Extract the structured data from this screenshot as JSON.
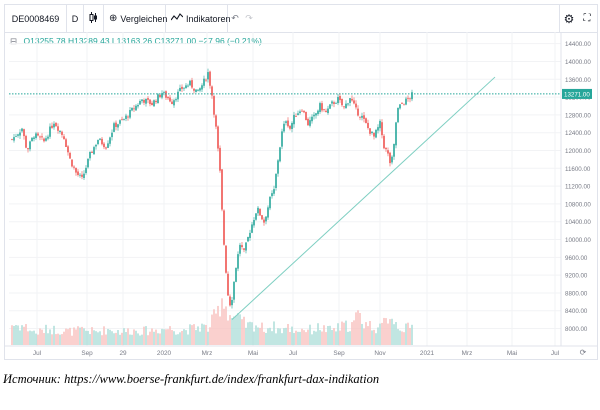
{
  "toolbar": {
    "symbol": "DE0008469",
    "interval": "D",
    "compare_label": "Vergleichen",
    "indicators_label": "Indikatoren",
    "icons": {
      "expand": "expand-icon",
      "bar_style": "candle-style-icon",
      "compare": "plus-circle-icon",
      "indicators": "indicators-icon",
      "undo": "undo-icon",
      "redo": "redo-icon",
      "settings": "gear-icon",
      "fullscreen": "fullscreen-icon"
    }
  },
  "legend": {
    "open": "O13255.78",
    "high": "H13289.43",
    "low": "L13163.26",
    "close": "C13271.00",
    "change": "−27.96 (−0.21%)",
    "icon": "collapse-icon"
  },
  "colors": {
    "up": "#26a69a",
    "down": "#ef5350",
    "volume_up": "#b2dfdb",
    "volume_down": "#f8c4c2",
    "trendline": "#7ecfc2",
    "price_line": "#26a69a"
  },
  "chart_data": {
    "type": "candlestick",
    "y_ticks": [
      "14400.00",
      "14000.00",
      "13600.00",
      "13200.00",
      "12800.00",
      "12400.00",
      "12000.00",
      "11600.00",
      "11200.00",
      "10800.00",
      "10400.00",
      "10000.00",
      "9600.00",
      "9200.00",
      "8800.00",
      "8400.00",
      "8000.00"
    ],
    "x_ticks": [
      "Jul",
      "Sep",
      "29",
      "2020",
      "Mrz",
      "Mai",
      "Jul",
      "Sep",
      "Nov",
      "2021",
      "Mrz",
      "Mai",
      "Jul"
    ],
    "ylim": [
      7900,
      14550
    ],
    "last_price_label": "13271.00",
    "last_price": 13271,
    "price_path": [
      [
        0,
        12250
      ],
      [
        10,
        12500
      ],
      [
        15,
        12000
      ],
      [
        22,
        12350
      ],
      [
        32,
        12200
      ],
      [
        42,
        12650
      ],
      [
        52,
        12300
      ],
      [
        58,
        11800
      ],
      [
        64,
        11500
      ],
      [
        70,
        11350
      ],
      [
        78,
        11900
      ],
      [
        86,
        12250
      ],
      [
        94,
        12100
      ],
      [
        102,
        12550
      ],
      [
        112,
        12700
      ],
      [
        120,
        12900
      ],
      [
        130,
        13150
      ],
      [
        140,
        13050
      ],
      [
        150,
        13300
      ],
      [
        160,
        13100
      ],
      [
        170,
        13400
      ],
      [
        178,
        13500
      ],
      [
        186,
        13300
      ],
      [
        192,
        13550
      ],
      [
        196,
        13750
      ],
      [
        200,
        13250
      ],
      [
        204,
        12500
      ],
      [
        208,
        11500
      ],
      [
        211,
        10200
      ],
      [
        214,
        9300
      ],
      [
        217,
        8500
      ],
      [
        220,
        8700
      ],
      [
        224,
        9400
      ],
      [
        228,
        9900
      ],
      [
        232,
        9700
      ],
      [
        238,
        10200
      ],
      [
        245,
        10700
      ],
      [
        252,
        10400
      ],
      [
        258,
        10900
      ],
      [
        262,
        11100
      ],
      [
        266,
        11800
      ],
      [
        270,
        12400
      ],
      [
        274,
        12700
      ],
      [
        278,
        12500
      ],
      [
        283,
        12800
      ],
      [
        290,
        12950
      ],
      [
        296,
        12600
      ],
      [
        302,
        12750
      ],
      [
        308,
        13000
      ],
      [
        314,
        12850
      ],
      [
        320,
        13050
      ],
      [
        326,
        13150
      ],
      [
        332,
        12950
      ],
      [
        338,
        13200
      ],
      [
        344,
        12900
      ],
      [
        350,
        12750
      ],
      [
        356,
        12500
      ],
      [
        362,
        12300
      ],
      [
        368,
        12600
      ],
      [
        372,
        12100
      ],
      [
        376,
        11900
      ],
      [
        379,
        11650
      ],
      [
        382,
        12100
      ],
      [
        385,
        12900
      ],
      [
        390,
        13050
      ],
      [
        396,
        13150
      ],
      [
        401,
        13271
      ]
    ],
    "trendline": [
      [
        220,
        8200
      ],
      [
        483,
        13650
      ]
    ],
    "volume": [
      [
        0,
        0.38
      ],
      [
        12,
        0.35
      ],
      [
        24,
        0.22
      ],
      [
        36,
        0.3
      ],
      [
        48,
        0.27
      ],
      [
        60,
        0.25
      ],
      [
        72,
        0.28
      ],
      [
        84,
        0.24
      ],
      [
        96,
        0.29
      ],
      [
        108,
        0.25
      ],
      [
        120,
        0.27
      ],
      [
        132,
        0.26
      ],
      [
        144,
        0.28
      ],
      [
        156,
        0.31
      ],
      [
        168,
        0.27
      ],
      [
        180,
        0.3
      ],
      [
        190,
        0.35
      ],
      [
        196,
        0.3
      ],
      [
        202,
        0.5
      ],
      [
        206,
        0.62
      ],
      [
        210,
        0.9
      ],
      [
        214,
        0.72
      ],
      [
        218,
        0.55
      ],
      [
        224,
        0.5
      ],
      [
        230,
        0.42
      ],
      [
        236,
        0.35
      ],
      [
        244,
        0.38
      ],
      [
        252,
        0.3
      ],
      [
        260,
        0.35
      ],
      [
        268,
        0.28
      ],
      [
        276,
        0.32
      ],
      [
        284,
        0.27
      ],
      [
        292,
        0.3
      ],
      [
        300,
        0.28
      ],
      [
        308,
        0.33
      ],
      [
        316,
        0.27
      ],
      [
        324,
        0.3
      ],
      [
        332,
        0.35
      ],
      [
        340,
        0.37
      ],
      [
        346,
        0.55
      ],
      [
        352,
        0.42
      ],
      [
        360,
        0.35
      ],
      [
        368,
        0.3
      ],
      [
        374,
        0.45
      ],
      [
        378,
        0.6
      ],
      [
        384,
        0.4
      ],
      [
        392,
        0.3
      ],
      [
        400,
        0.33
      ]
    ]
  },
  "caption": "Источник: https://www.boerse-frankfurt.de/index/frankfurt-dax-indikation"
}
